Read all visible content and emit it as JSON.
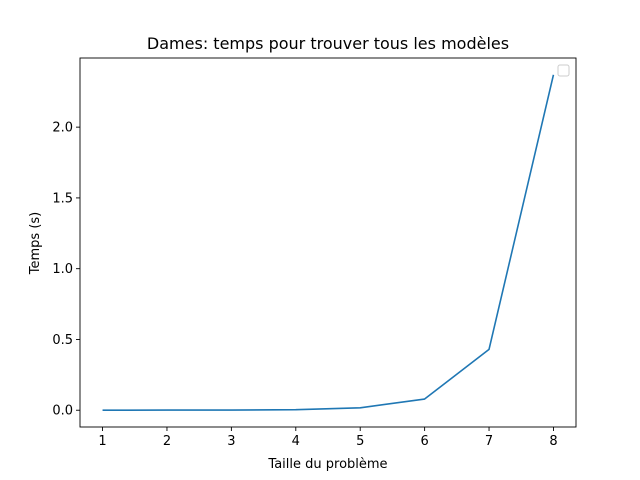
{
  "chart_data": {
    "type": "line",
    "title": "Dames: temps pour trouver tous les modèles",
    "xlabel": "Taille du problème",
    "ylabel": "Temps (s)",
    "x": [
      1,
      2,
      3,
      4,
      5,
      6,
      7,
      8
    ],
    "series": [
      {
        "values": [
          0.0005,
          0.0008,
          0.0012,
          0.004,
          0.017,
          0.079,
          0.43,
          2.37
        ],
        "color": "#1f77b4"
      }
    ],
    "xticks": [
      "1",
      "2",
      "3",
      "4",
      "5",
      "6",
      "7",
      "8"
    ],
    "yticks": [
      "0.0",
      "0.5",
      "1.0",
      "1.5",
      "2.0"
    ],
    "ytick_values": [
      0,
      0.5,
      1.0,
      1.5,
      2.0
    ],
    "xlim": [
      0.65,
      8.35
    ],
    "ylim": [
      -0.1185,
      2.4885
    ],
    "grid": false,
    "legend": "top-right, empty"
  }
}
